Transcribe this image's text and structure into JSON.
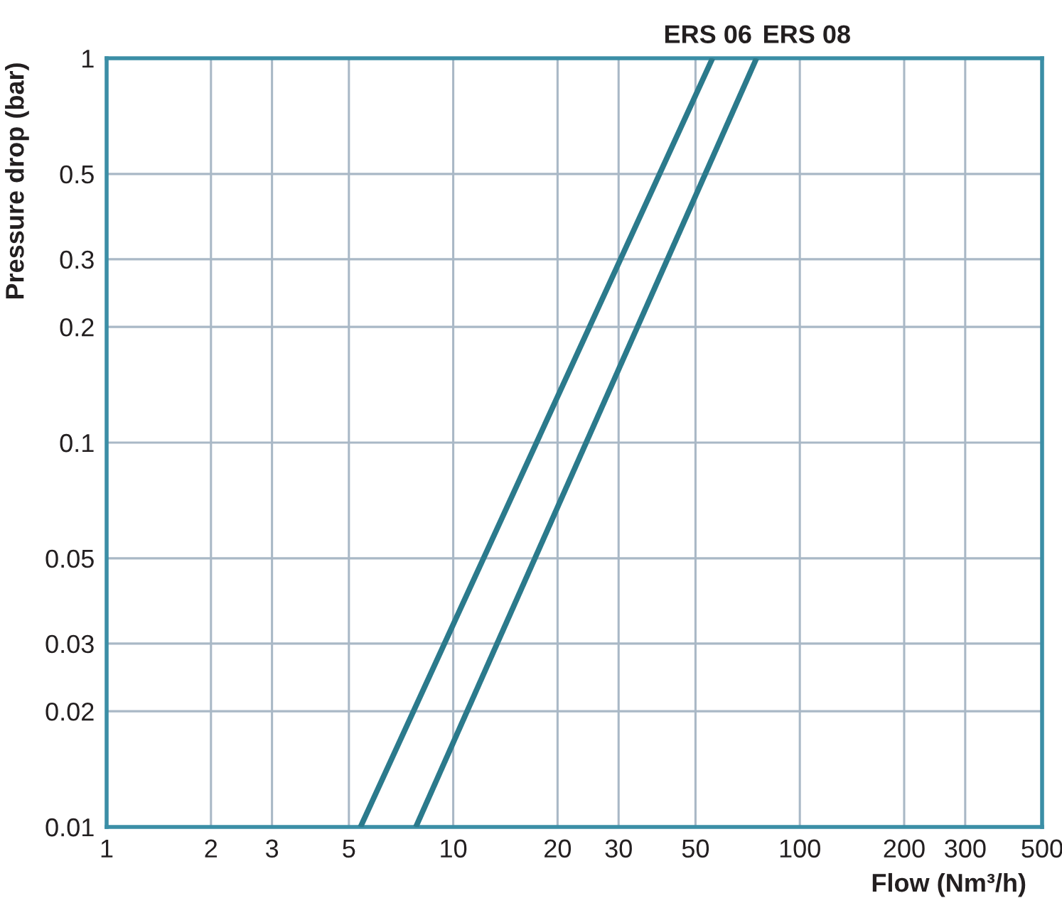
{
  "chart_data": {
    "type": "line",
    "xlabel": "Flow (Nm³/h)",
    "ylabel": "Pressure drop (bar)",
    "log": "xy",
    "xlim": [
      1,
      500
    ],
    "ylim": [
      0.01,
      1
    ],
    "xticks": [
      1,
      2,
      3,
      5,
      10,
      20,
      30,
      50,
      100,
      200,
      300,
      500
    ],
    "yticks": [
      0.01,
      0.02,
      0.03,
      0.05,
      0.1,
      0.2,
      0.3,
      0.5,
      1
    ],
    "grid": true,
    "legend": false,
    "marker": "none",
    "line_style": "solid",
    "series": [
      {
        "name": "ERS 06",
        "color": "#2b7a8c",
        "x": [
          5.4,
          56
        ],
        "values": [
          0.01,
          1
        ]
      },
      {
        "name": "ERS 08",
        "color": "#2b7a8c",
        "x": [
          7.8,
          75
        ],
        "values": [
          0.01,
          1
        ]
      }
    ]
  }
}
